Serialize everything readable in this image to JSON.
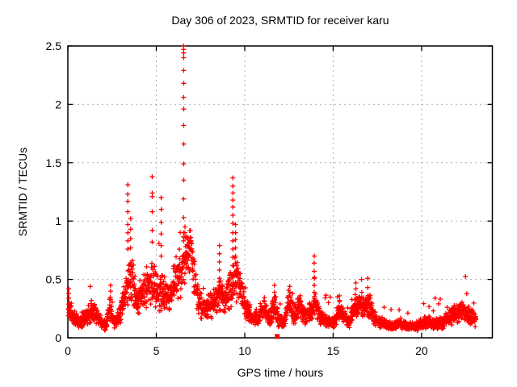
{
  "chart_data": {
    "type": "scatter",
    "title": "Day 306 of 2023, SRMTID for receiver karu",
    "xlabel": "GPS time / hours",
    "ylabel": "SRMTID / TECUs",
    "xlim": [
      0,
      24
    ],
    "ylim": [
      0,
      2.5
    ],
    "xticks": [
      0,
      5,
      10,
      15,
      20
    ],
    "yticks": [
      0,
      0.5,
      1,
      1.5,
      2,
      2.5
    ],
    "grid": true,
    "legend": "none",
    "marker": "+",
    "marker_color": "#ff0000",
    "grid_color": "#b0b0b0",
    "axis_color": "#000000",
    "background": "#ffffff",
    "series_name": "SRMTID",
    "sampling": {
      "t_start": 0.02,
      "t_end": 23.07,
      "n_points": 2400
    },
    "envelope": [
      [
        0.0,
        0.27
      ],
      [
        0.25,
        0.2
      ],
      [
        0.6,
        0.14
      ],
      [
        1.0,
        0.18
      ],
      [
        1.45,
        0.24
      ],
      [
        1.8,
        0.15
      ],
      [
        2.15,
        0.11
      ],
      [
        2.4,
        0.28
      ],
      [
        2.6,
        0.12
      ],
      [
        2.9,
        0.18
      ],
      [
        3.15,
        0.33
      ],
      [
        3.4,
        0.45
      ],
      [
        3.65,
        0.48
      ],
      [
        3.9,
        0.32
      ],
      [
        4.2,
        0.38
      ],
      [
        4.5,
        0.45
      ],
      [
        4.8,
        0.48
      ],
      [
        5.05,
        0.42
      ],
      [
        5.3,
        0.4
      ],
      [
        5.6,
        0.33
      ],
      [
        5.9,
        0.42
      ],
      [
        6.2,
        0.48
      ],
      [
        6.45,
        0.55
      ],
      [
        6.7,
        0.72
      ],
      [
        6.95,
        0.78
      ],
      [
        7.15,
        0.5
      ],
      [
        7.4,
        0.3
      ],
      [
        7.7,
        0.25
      ],
      [
        8.0,
        0.28
      ],
      [
        8.3,
        0.3
      ],
      [
        8.6,
        0.38
      ],
      [
        8.9,
        0.3
      ],
      [
        9.2,
        0.42
      ],
      [
        9.45,
        0.55
      ],
      [
        9.7,
        0.45
      ],
      [
        9.95,
        0.32
      ],
      [
        10.2,
        0.22
      ],
      [
        10.5,
        0.16
      ],
      [
        10.8,
        0.2
      ],
      [
        11.1,
        0.25
      ],
      [
        11.4,
        0.16
      ],
      [
        11.7,
        0.28
      ],
      [
        11.95,
        0.14
      ],
      [
        12.2,
        0.13
      ],
      [
        12.5,
        0.3
      ],
      [
        12.8,
        0.2
      ],
      [
        13.1,
        0.27
      ],
      [
        13.4,
        0.18
      ],
      [
        13.7,
        0.22
      ],
      [
        13.95,
        0.3
      ],
      [
        14.2,
        0.2
      ],
      [
        14.5,
        0.15
      ],
      [
        14.8,
        0.13
      ],
      [
        15.1,
        0.14
      ],
      [
        15.35,
        0.24
      ],
      [
        15.6,
        0.18
      ],
      [
        15.9,
        0.14
      ],
      [
        16.2,
        0.26
      ],
      [
        16.5,
        0.3
      ],
      [
        16.8,
        0.26
      ],
      [
        17.05,
        0.3
      ],
      [
        17.3,
        0.18
      ],
      [
        17.6,
        0.13
      ],
      [
        18.0,
        0.11
      ],
      [
        18.4,
        0.1
      ],
      [
        18.8,
        0.13
      ],
      [
        19.2,
        0.09
      ],
      [
        19.6,
        0.1
      ],
      [
        20.0,
        0.12
      ],
      [
        20.4,
        0.14
      ],
      [
        20.8,
        0.12
      ],
      [
        21.2,
        0.13
      ],
      [
        21.6,
        0.18
      ],
      [
        22.0,
        0.21
      ],
      [
        22.4,
        0.22
      ],
      [
        22.8,
        0.17
      ],
      [
        23.07,
        0.16
      ]
    ],
    "spike_columns": [
      {
        "x": 0.05,
        "ys": [
          0.42,
          0.38,
          0.34
        ]
      },
      {
        "x": 2.42,
        "ys": [
          0.45,
          0.4
        ]
      },
      {
        "x": 3.39,
        "ys": [
          1.31,
          1.23,
          1.17,
          1.08,
          0.97,
          0.9,
          0.83,
          0.76
        ]
      },
      {
        "x": 3.55,
        "ys": [
          1.02,
          0.93,
          0.85,
          0.77
        ]
      },
      {
        "x": 4.77,
        "ys": [
          1.38,
          1.24,
          1.21,
          1.08,
          0.92,
          0.82
        ]
      },
      {
        "x": 5.28,
        "ys": [
          1.2,
          1.1,
          0.99,
          0.89,
          0.79,
          0.7
        ]
      },
      {
        "x": 6.55,
        "ys": [
          2.5,
          2.47,
          2.44,
          2.4,
          2.29,
          2.18,
          2.06,
          1.96,
          1.82,
          1.66,
          1.49,
          1.35,
          1.19,
          1.03,
          0.9,
          0.83
        ]
      },
      {
        "x": 6.62,
        "ys": [
          0.95,
          0.9,
          0.86
        ]
      },
      {
        "x": 8.57,
        "ys": [
          0.79,
          0.72,
          0.65,
          0.58,
          0.51,
          0.45
        ]
      },
      {
        "x": 9.33,
        "ys": [
          1.37,
          1.3,
          1.24,
          1.18,
          1.12,
          1.05,
          0.98,
          0.9,
          0.83,
          0.76,
          0.69,
          0.62
        ]
      },
      {
        "x": 9.48,
        "ys": [
          0.97,
          0.9,
          0.84,
          0.77,
          0.7,
          0.64
        ]
      },
      {
        "x": 11.68,
        "ys": [
          0.45,
          0.39,
          0.34
        ]
      },
      {
        "x": 12.55,
        "ys": [
          0.44,
          0.39
        ]
      },
      {
        "x": 13.93,
        "ys": [
          0.7,
          0.64,
          0.57,
          0.51,
          0.45,
          0.39,
          0.34
        ]
      },
      {
        "x": 15.35,
        "ys": [
          0.36,
          0.31
        ]
      },
      {
        "x": 16.28,
        "ys": [
          0.47,
          0.42
        ]
      },
      {
        "x": 16.6,
        "ys": [
          0.5
        ]
      },
      {
        "x": 16.95,
        "ys": [
          0.51,
          0.43,
          0.35
        ]
      }
    ],
    "outlier_square": {
      "x": 11.84,
      "y": 0.012,
      "marker": "filled-square"
    }
  }
}
